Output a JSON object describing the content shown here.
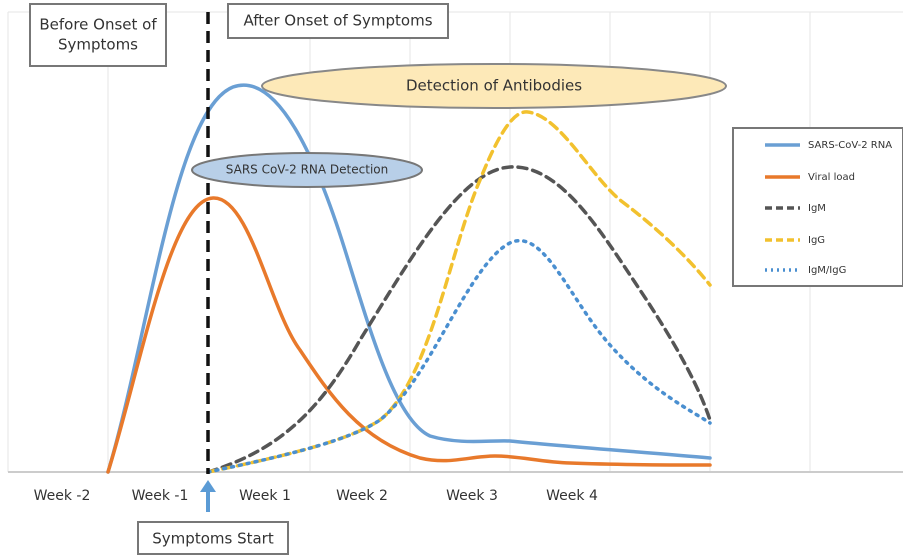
{
  "before_box": {
    "lines": [
      "Before Onset of",
      "Symptoms"
    ]
  },
  "after_box": {
    "label": "After Onset of Symptoms"
  },
  "antibody_ellipse": {
    "label": "Detection of Antibodies"
  },
  "rna_ellipse": {
    "label": "SARS CoV-2 RNA Detection"
  },
  "legend": [
    "SARS-CoV-2 RNA",
    "Viral load",
    "IgM",
    "IgG",
    "IgM/IgG"
  ],
  "x_labels": [
    "Week -2",
    "Week -1",
    "Week 1",
    "Week 2",
    "Week 3",
    "Week 4"
  ],
  "symptoms_start": {
    "label": "Symptoms Start"
  }
}
